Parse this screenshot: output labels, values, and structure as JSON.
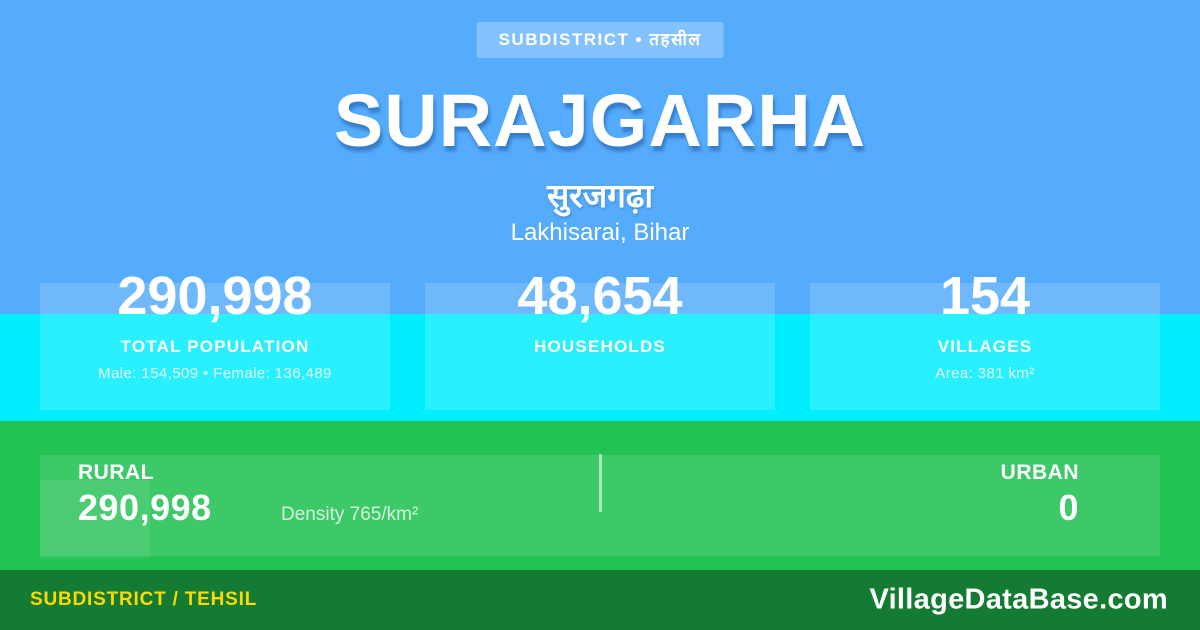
{
  "badge": {
    "label": "SUBDISTRICT • तहसील"
  },
  "header": {
    "title": "SURAJGARHA",
    "title_hindi": "सुरजगढ़ा",
    "location": "Lakhisarai, Bihar"
  },
  "stats": [
    {
      "value": "290,998",
      "label": "TOTAL POPULATION",
      "sub": "Male: 154,509 • Female: 136,489"
    },
    {
      "value": "48,654",
      "label": "HOUSEHOLDS"
    },
    {
      "value": "154",
      "label": "VILLAGES",
      "sub": "Area: 381 km²"
    }
  ],
  "rural_urban": {
    "rural_label": "RURAL",
    "rural_value": "290,998",
    "density": "Density 765/km²",
    "urban_label": "URBAN",
    "urban_value": "0"
  },
  "footer": {
    "type_label": "SUBDISTRICT / TEHSIL",
    "site": "VillageDataBase.com"
  },
  "colors": {
    "background_blue": "#55abfc",
    "badge_blue": "#7fc2fd",
    "band_cyan": "#00eeff",
    "band_green": "#22c253",
    "footer_green": "#147b33",
    "footer_accent_yellow": "#ffd900",
    "text_white": "#ffffff"
  }
}
